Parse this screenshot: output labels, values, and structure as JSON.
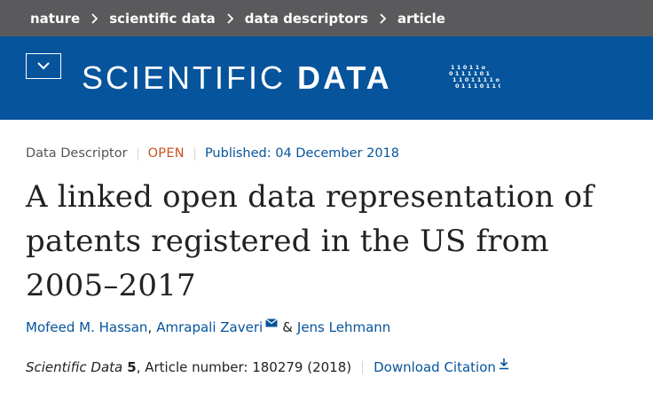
{
  "breadcrumb": {
    "items": [
      "nature",
      "scientific data",
      "data descriptors",
      "article"
    ]
  },
  "header": {
    "brand_light": "SCIENTIFIC",
    "brand_bold": "DATA",
    "binary_lines": [
      "11011o",
      "0111101",
      "1101111o",
      "011101101"
    ],
    "menu_icon": "chevron-down-icon"
  },
  "article": {
    "type": "Data Descriptor",
    "access": "OPEN",
    "published": "Published: 04 December 2018",
    "title": "A linked open data representation of patents registered in the US from 2005–2017",
    "authors": {
      "author1": "Mofeed M. Hassan",
      "sep1": ",",
      "author2": "Amrapali Zaveri",
      "sep2": "&",
      "author3": "Jens Lehmann"
    },
    "citation": {
      "journal": "Scientific Data",
      "volume": "5",
      "details": ", Article number: 180279 (2018)",
      "download_label": "Download Citation"
    }
  },
  "colors": {
    "crumb_bg": "#5a5a5c",
    "brand_bg": "#05549c",
    "link": "#05549c",
    "open": "#c8531d"
  }
}
